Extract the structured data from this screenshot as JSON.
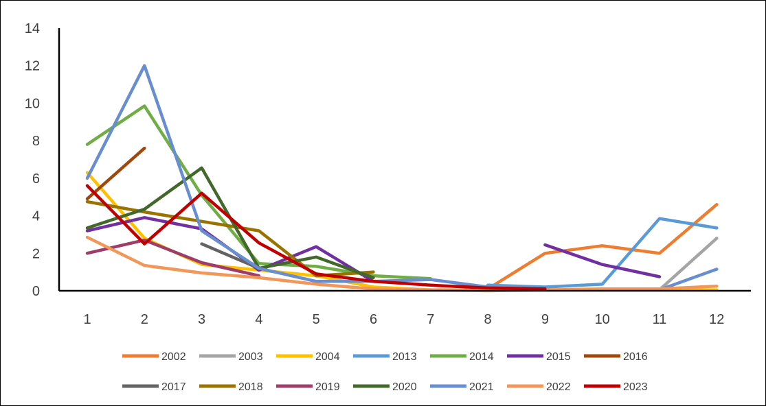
{
  "chart_data": {
    "type": "line",
    "title": "",
    "xlabel": "",
    "ylabel": "",
    "x": [
      1,
      2,
      3,
      4,
      5,
      6,
      7,
      8,
      9,
      10,
      11,
      12
    ],
    "x_tick_labels": [
      "1",
      "2",
      "3",
      "4",
      "5",
      "6",
      "7",
      "8",
      "9",
      "10",
      "11",
      "12"
    ],
    "ylim": [
      0,
      14
    ],
    "y_ticks": [
      0,
      2,
      4,
      6,
      8,
      10,
      12,
      14
    ],
    "y_tick_labels": [
      "0",
      "2",
      "4",
      "6",
      "8",
      "10",
      "12",
      "14"
    ],
    "grid": false,
    "legend_position": "bottom",
    "series": [
      {
        "name": "2002",
        "color": "#ED7D31",
        "values": [
          null,
          null,
          null,
          null,
          null,
          null,
          null,
          0.1,
          2.0,
          2.4,
          2.0,
          4.6
        ]
      },
      {
        "name": "2003",
        "color": "#A5A5A5",
        "values": [
          null,
          null,
          null,
          null,
          null,
          null,
          null,
          null,
          null,
          null,
          0.05,
          2.8
        ]
      },
      {
        "name": "2004",
        "color": "#FFC000",
        "values": [
          6.3,
          2.8,
          1.4,
          1.1,
          0.8,
          0.2,
          0.05,
          0.0,
          0.05,
          0.05,
          0.05,
          0.05
        ]
      },
      {
        "name": "2013",
        "color": "#5B9BD5",
        "values": [
          null,
          null,
          null,
          null,
          null,
          null,
          null,
          0.3,
          0.2,
          0.35,
          3.85,
          3.35
        ]
      },
      {
        "name": "2014",
        "color": "#70AD47",
        "values": [
          7.8,
          9.85,
          5.1,
          1.45,
          1.3,
          0.8,
          0.65,
          null,
          null,
          null,
          null,
          null
        ]
      },
      {
        "name": "2015",
        "color": "#7030A0",
        "values": [
          3.2,
          3.9,
          3.3,
          1.1,
          2.35,
          0.5,
          null,
          null,
          2.45,
          1.4,
          0.75,
          null
        ]
      },
      {
        "name": "2016",
        "color": "#9E480E",
        "values": [
          4.9,
          7.6,
          null,
          null,
          null,
          null,
          null,
          null,
          null,
          null,
          null,
          null
        ]
      },
      {
        "name": "2017",
        "color": "#636363",
        "values": [
          null,
          null,
          2.5,
          1.2,
          null,
          null,
          null,
          null,
          null,
          null,
          null,
          null
        ]
      },
      {
        "name": "2018",
        "color": "#997300",
        "values": [
          4.75,
          4.2,
          3.7,
          3.2,
          0.8,
          1.0,
          null,
          null,
          null,
          null,
          null,
          null
        ]
      },
      {
        "name": "2019",
        "color": "#9E3D6A",
        "values": [
          2.0,
          2.7,
          1.5,
          0.8,
          null,
          null,
          null,
          null,
          null,
          null,
          null,
          null
        ]
      },
      {
        "name": "2020",
        "color": "#43682B",
        "values": [
          3.35,
          4.35,
          6.55,
          1.2,
          1.8,
          0.7,
          null,
          null,
          null,
          null,
          null,
          null
        ]
      },
      {
        "name": "2021",
        "color": "#698ED0",
        "values": [
          6.0,
          12.0,
          3.2,
          1.2,
          0.5,
          0.5,
          0.6,
          0.2,
          0.05,
          0.05,
          0.05,
          1.15
        ]
      },
      {
        "name": "2022",
        "color": "#F1975A",
        "values": [
          2.85,
          1.35,
          0.95,
          0.7,
          0.35,
          0.1,
          0.05,
          0.05,
          0.05,
          0.1,
          0.1,
          0.25
        ]
      },
      {
        "name": "2023",
        "color": "#C00000",
        "values": [
          5.6,
          2.5,
          5.2,
          2.55,
          0.9,
          0.5,
          0.3,
          0.15,
          0.1,
          null,
          null,
          null
        ]
      }
    ]
  }
}
